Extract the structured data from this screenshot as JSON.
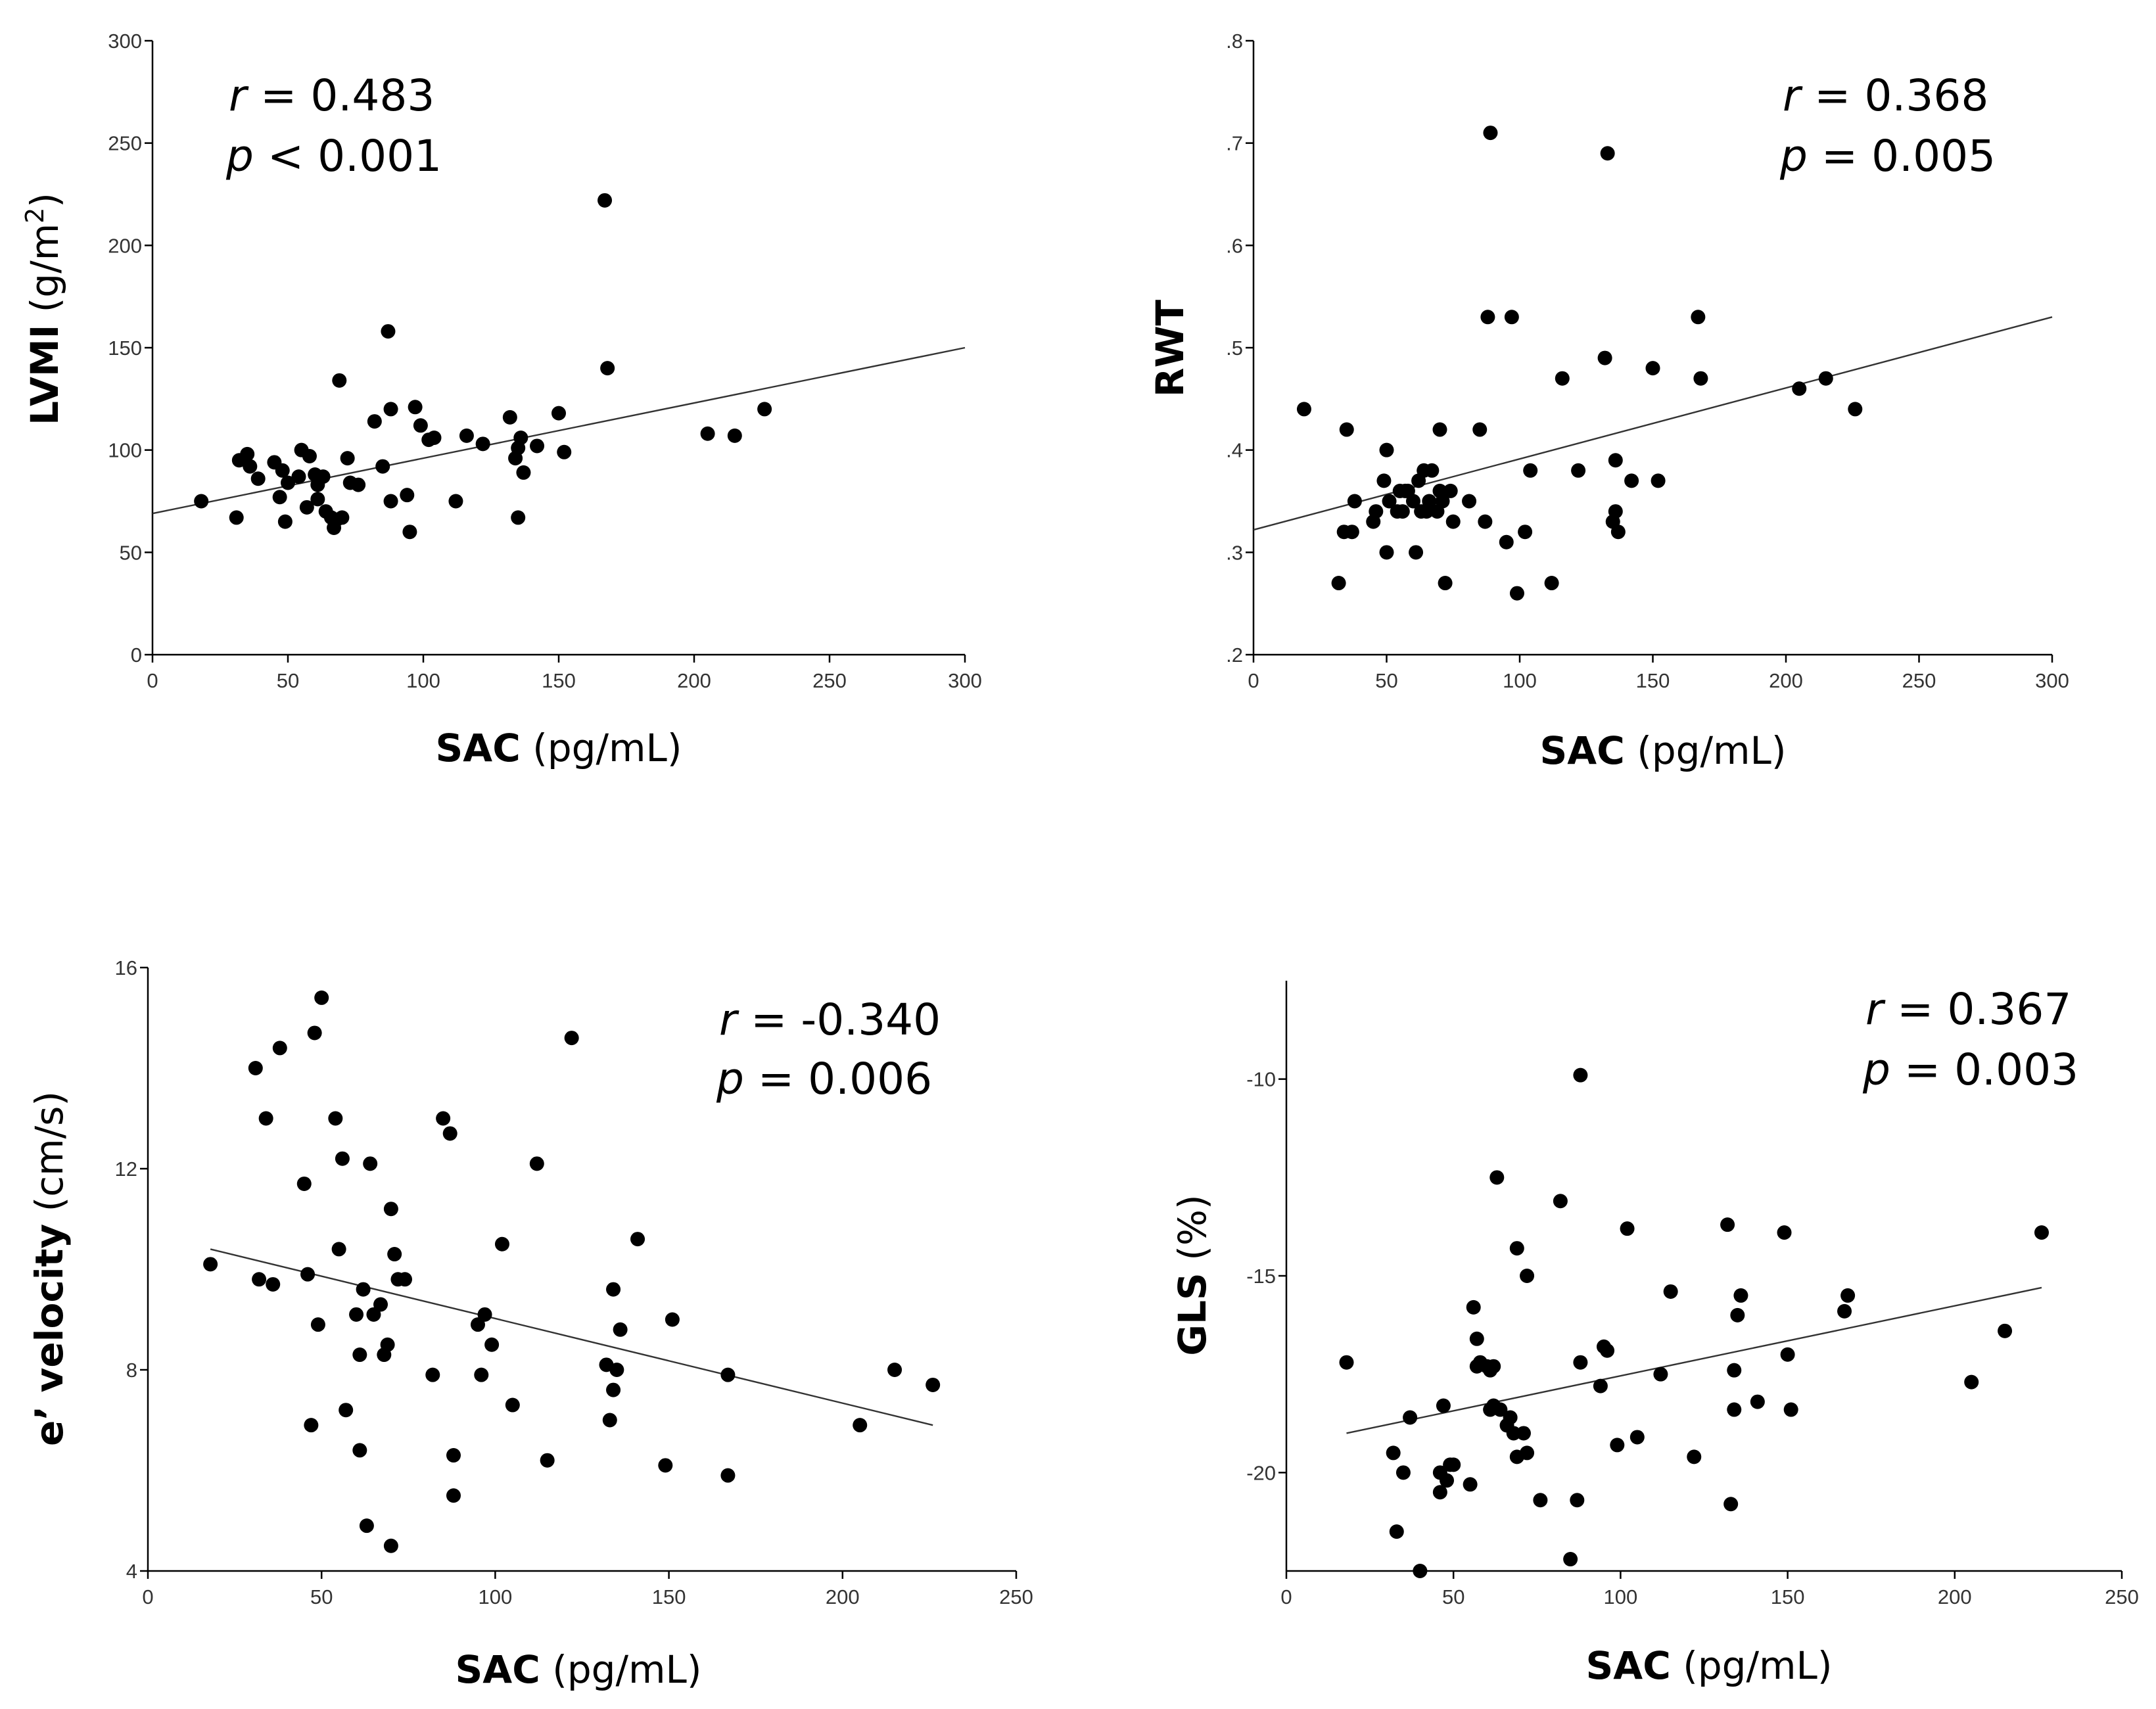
{
  "chart_data": [
    {
      "type": "scatter",
      "title": "",
      "xlabel": "SAC",
      "xlabel_unit": "(pg/mL)",
      "ylabel": "LVMI",
      "ylabel_unit": "(g/m²)",
      "xlim": [
        0,
        300
      ],
      "ylim": [
        0,
        300
      ],
      "x_ticks": [
        0,
        50,
        100,
        150,
        200,
        250,
        300
      ],
      "x_tick_labels": [
        "0",
        "50",
        "100",
        "150",
        "200",
        "250",
        "300"
      ],
      "y_ticks": [
        0,
        50,
        100,
        150,
        200,
        250,
        300
      ],
      "y_tick_labels": [
        "0",
        "50",
        "100",
        "150",
        "200",
        "250",
        "300"
      ],
      "stats": {
        "r_label": "r",
        "r_text": "= 0.483",
        "p_label": "p",
        "p_text": "< 0.001"
      },
      "fit_line": {
        "x": [
          0,
          300
        ],
        "y": [
          69,
          150
        ]
      },
      "x": [
        18,
        31,
        32,
        35,
        36,
        39,
        45,
        47,
        48,
        49,
        50,
        54,
        55,
        57,
        58,
        60,
        61,
        61,
        63,
        64,
        66,
        67,
        68,
        69,
        70,
        72,
        73,
        76,
        82,
        85,
        87,
        88,
        88,
        94,
        95,
        97,
        99,
        102,
        104,
        112,
        116,
        122,
        132,
        134,
        135,
        135,
        136,
        137,
        142,
        150,
        152,
        167,
        168,
        205,
        215,
        226
      ],
      "y": [
        75,
        67,
        95,
        98,
        92,
        86,
        94,
        77,
        90,
        65,
        84,
        87,
        100,
        72,
        97,
        88,
        83,
        76,
        87,
        70,
        67,
        62,
        66,
        134,
        67,
        96,
        84,
        83,
        114,
        92,
        158,
        120,
        75,
        78,
        60,
        121,
        112,
        105,
        106,
        75,
        107,
        103,
        116,
        96,
        67,
        101,
        106,
        89,
        102,
        118,
        99,
        222,
        140,
        108,
        107,
        120
      ]
    },
    {
      "type": "scatter",
      "title": "",
      "xlabel": "SAC",
      "xlabel_unit": "(pg/mL)",
      "ylabel": "RWT",
      "ylabel_unit": "",
      "xlim": [
        0,
        300
      ],
      "ylim": [
        0.2,
        0.8
      ],
      "x_ticks": [
        0,
        50,
        100,
        150,
        200,
        250,
        300
      ],
      "x_tick_labels": [
        "0",
        "50",
        "100",
        "150",
        "200",
        "250",
        "300"
      ],
      "y_ticks": [
        0.2,
        0.3,
        0.4,
        0.5,
        0.6,
        0.7,
        0.8
      ],
      "y_tick_labels": [
        ".2",
        ".3",
        ".4",
        ".5",
        ".6",
        ".7",
        ".8"
      ],
      "stats": {
        "r_label": "r",
        "r_text": "= 0.368",
        "p_label": "p",
        "p_text": "= 0.005"
      },
      "fit_line": {
        "x": [
          0,
          300
        ],
        "y": [
          0.322,
          0.53
        ]
      },
      "x": [
        19,
        32,
        34,
        35,
        37,
        38,
        45,
        46,
        49,
        50,
        50,
        51,
        54,
        55,
        56,
        57,
        58,
        60,
        61,
        62,
        63,
        64,
        65,
        66,
        67,
        69,
        70,
        70,
        71,
        72,
        74,
        75,
        81,
        85,
        87,
        88,
        89,
        95,
        97,
        99,
        102,
        104,
        112,
        116,
        122,
        132,
        133,
        135,
        136,
        136,
        137,
        142,
        150,
        152,
        167,
        168,
        205,
        215,
        226
      ],
      "y": [
        0.44,
        0.27,
        0.32,
        0.42,
        0.32,
        0.35,
        0.33,
        0.34,
        0.37,
        0.3,
        0.4,
        0.35,
        0.34,
        0.36,
        0.34,
        0.36,
        0.36,
        0.35,
        0.3,
        0.37,
        0.34,
        0.38,
        0.34,
        0.35,
        0.38,
        0.34,
        0.42,
        0.36,
        0.35,
        0.27,
        0.36,
        0.33,
        0.35,
        0.42,
        0.33,
        0.53,
        0.71,
        0.31,
        0.53,
        0.26,
        0.32,
        0.38,
        0.27,
        0.47,
        0.38,
        0.49,
        0.69,
        0.33,
        0.34,
        0.39,
        0.32,
        0.37,
        0.48,
        0.37,
        0.53,
        0.47,
        0.46,
        0.47,
        0.44
      ]
    },
    {
      "type": "scatter",
      "title": "",
      "xlabel": "SAC",
      "xlabel_unit": "(pg/mL)",
      "ylabel": "e’ velocity",
      "ylabel_unit": "(cm/s)",
      "xlim": [
        0,
        250
      ],
      "ylim": [
        4,
        16
      ],
      "x_ticks": [
        0,
        50,
        100,
        150,
        200,
        250
      ],
      "x_tick_labels": [
        "0",
        "50",
        "100",
        "150",
        "200",
        "250"
      ],
      "y_ticks": [
        4,
        8,
        12,
        16
      ],
      "y_tick_labels": [
        "4",
        "8",
        "12",
        "16"
      ],
      "stats": {
        "r_label": "r",
        "r_text": "= -0.340",
        "p_label": "p",
        "p_text": "= 0.006"
      },
      "fit_line": {
        "x": [
          18,
          226
        ],
        "y": [
          10.4,
          6.9
        ]
      },
      "x": [
        18,
        31,
        32,
        34,
        36,
        38,
        45,
        46,
        47,
        48,
        49,
        50,
        54,
        55,
        56,
        57,
        60,
        61,
        61,
        62,
        63,
        64,
        65,
        67,
        68,
        69,
        70,
        70,
        71,
        72,
        74,
        82,
        85,
        87,
        88,
        88,
        95,
        96,
        97,
        99,
        102,
        105,
        112,
        115,
        122,
        132,
        133,
        134,
        134,
        135,
        136,
        141,
        149,
        151,
        167,
        167,
        205,
        215,
        226
      ],
      "y": [
        10.1,
        14.0,
        9.8,
        13.0,
        9.7,
        14.4,
        11.7,
        9.9,
        6.9,
        14.7,
        8.9,
        15.4,
        13.0,
        10.4,
        12.2,
        7.2,
        9.1,
        6.4,
        8.3,
        9.6,
        4.9,
        12.1,
        9.1,
        9.3,
        8.3,
        8.5,
        4.5,
        11.2,
        10.3,
        9.8,
        9.8,
        7.9,
        13.0,
        12.7,
        5.5,
        6.3,
        8.9,
        7.9,
        9.1,
        8.5,
        10.5,
        7.3,
        12.1,
        6.2,
        14.6,
        8.1,
        7.0,
        9.6,
        7.6,
        8.0,
        8.8,
        10.6,
        6.1,
        9.0,
        5.9,
        7.9,
        6.9,
        8.0,
        7.7
      ]
    },
    {
      "type": "scatter",
      "title": "",
      "xlabel": "SAC",
      "xlabel_unit": "(pg/mL)",
      "ylabel": "GLS",
      "ylabel_unit": "(%)",
      "xlim": [
        0,
        250
      ],
      "ylim": [
        -22.5,
        -7.5
      ],
      "x_ticks": [
        0,
        50,
        100,
        150,
        200,
        250
      ],
      "x_tick_labels": [
        "0",
        "50",
        "100",
        "150",
        "200",
        "250"
      ],
      "y_ticks": [
        -20,
        -15,
        -10
      ],
      "y_tick_labels": [
        "-20",
        "-15",
        "-10"
      ],
      "stats": {
        "r_label": "r",
        "r_text": "= 0.367",
        "p_label": "p",
        "p_text": "= 0.003"
      },
      "fit_line": {
        "x": [
          18,
          226
        ],
        "y": [
          -19.0,
          -15.3
        ]
      },
      "x": [
        18,
        32,
        33,
        35,
        37,
        40,
        46,
        46,
        47,
        48,
        49,
        50,
        55,
        56,
        57,
        57,
        58,
        60,
        61,
        61,
        62,
        62,
        63,
        64,
        66,
        67,
        68,
        69,
        69,
        71,
        72,
        72,
        76,
        82,
        85,
        87,
        88,
        88,
        94,
        95,
        96,
        99,
        102,
        105,
        112,
        115,
        122,
        132,
        133,
        134,
        134,
        135,
        136,
        141,
        149,
        150,
        151,
        167,
        168,
        205,
        215,
        226
      ],
      "y": [
        -17.2,
        -19.5,
        -21.5,
        -20.0,
        -18.6,
        -22.5,
        -20.0,
        -20.5,
        -18.3,
        -20.2,
        -19.8,
        -19.8,
        -20.3,
        -15.8,
        -16.6,
        -17.3,
        -17.2,
        -17.3,
        -17.4,
        -18.4,
        -17.3,
        -18.3,
        -12.5,
        -18.4,
        -18.8,
        -18.6,
        -19.0,
        -19.6,
        -14.3,
        -19.0,
        -19.5,
        -15.0,
        -20.7,
        -13.1,
        -22.2,
        -20.7,
        -9.9,
        -17.2,
        -17.8,
        -16.8,
        -16.9,
        -19.3,
        -13.8,
        -19.1,
        -17.5,
        -15.4,
        -19.6,
        -13.7,
        -20.8,
        -18.4,
        -17.4,
        -16.0,
        -15.5,
        -18.2,
        -13.9,
        -17.0,
        -18.4,
        -15.9,
        -15.5,
        -17.7,
        -16.4,
        -13.9
      ]
    }
  ]
}
